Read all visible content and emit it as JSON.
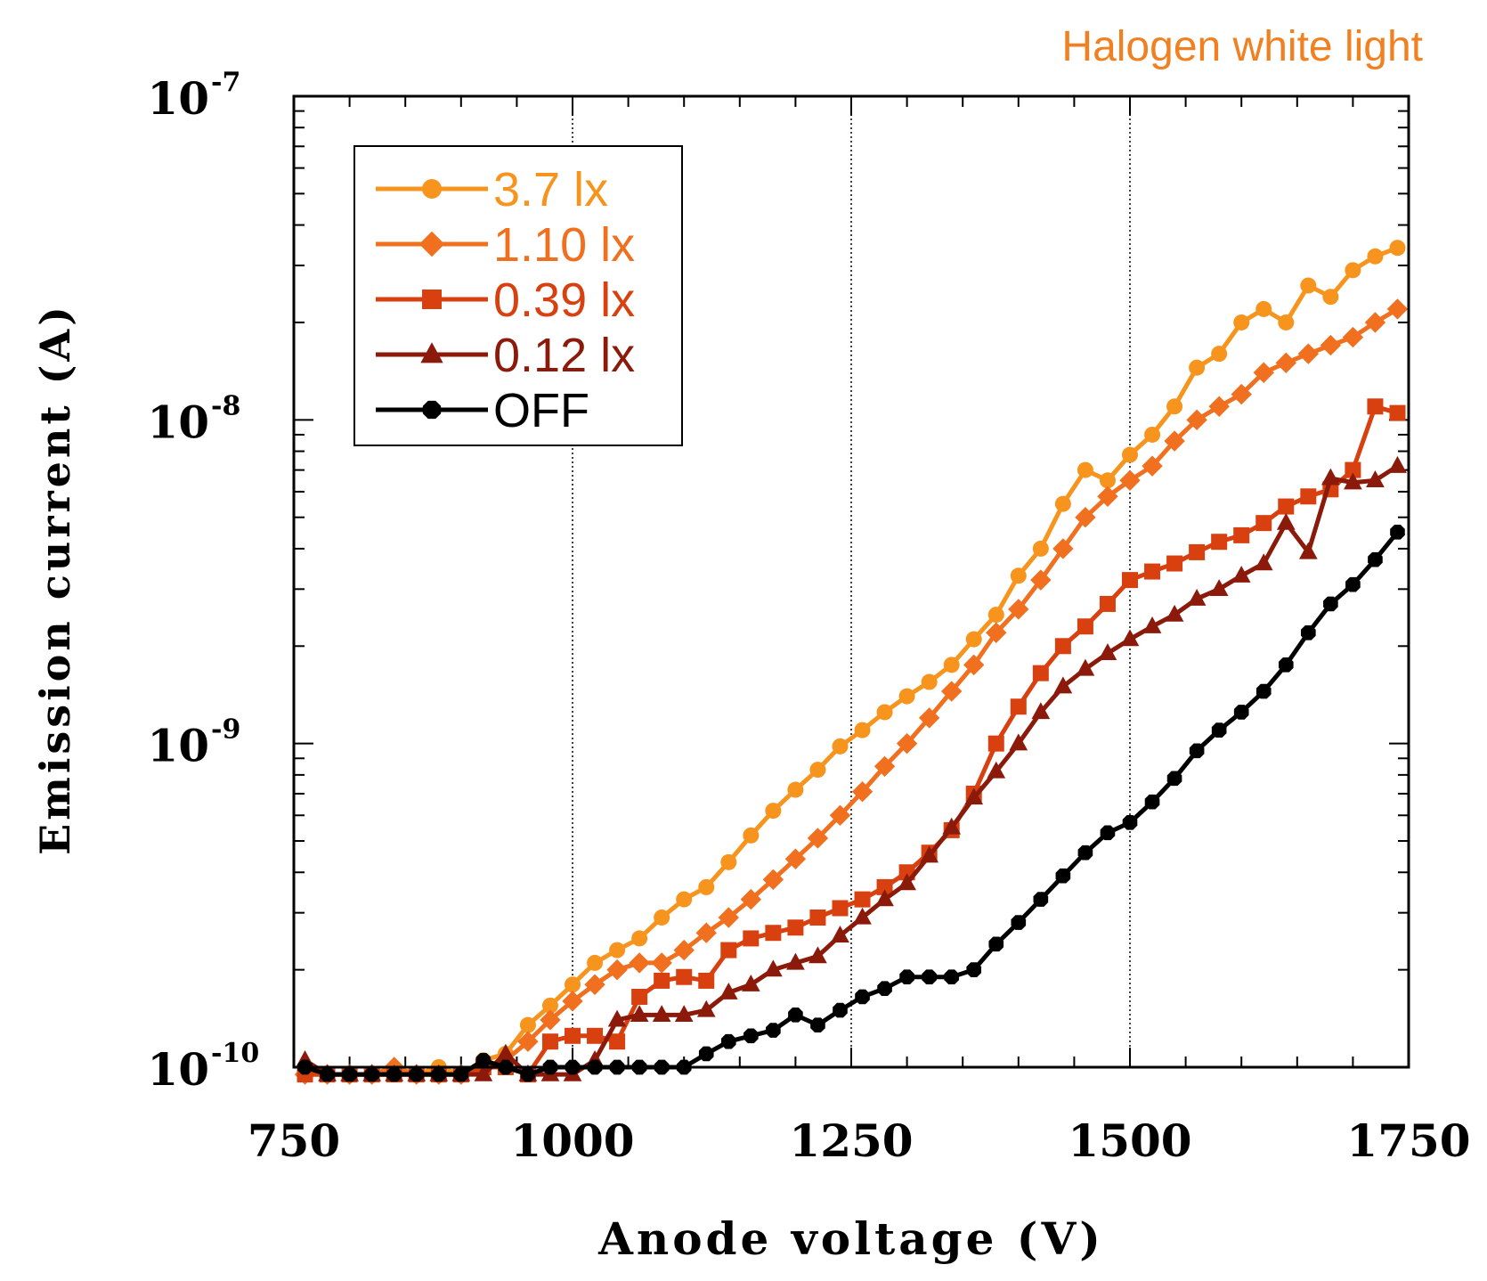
{
  "chart_data": {
    "type": "line",
    "title": "Halogen white light",
    "title_color": "#F08020",
    "xlabel": "Anode voltage (V)",
    "ylabel": "Emission current (A)",
    "xscale": "linear",
    "yscale": "log",
    "xlim": [
      750,
      1750
    ],
    "ylim": [
      1e-10,
      1e-07
    ],
    "x_ticks": [
      750,
      1000,
      1250,
      1500,
      1750
    ],
    "x_tick_labels": [
      "750",
      "1000",
      "1250",
      "1500",
      "1750"
    ],
    "y_ticks": [
      1e-10,
      1e-09,
      1e-08,
      1e-07
    ],
    "y_tick_labels": [
      {
        "base": "10",
        "exp": "-10"
      },
      {
        "base": "10",
        "exp": "-9"
      },
      {
        "base": "10",
        "exp": "-8"
      },
      {
        "base": "10",
        "exp": "-7"
      }
    ],
    "vertical_gridlines": [
      1000,
      1250,
      1500
    ],
    "legend_position": "top-left",
    "series": [
      {
        "name": "3.7  lx",
        "color": "#F7941D",
        "marker": "circle",
        "x": [
          760,
          780,
          800,
          820,
          840,
          860,
          880,
          900,
          920,
          940,
          960,
          980,
          1000,
          1020,
          1040,
          1060,
          1080,
          1100,
          1120,
          1140,
          1160,
          1180,
          1200,
          1220,
          1240,
          1260,
          1280,
          1300,
          1320,
          1340,
          1360,
          1380,
          1400,
          1420,
          1440,
          1460,
          1480,
          1500,
          1520,
          1540,
          1560,
          1580,
          1600,
          1620,
          1640,
          1660,
          1680,
          1700,
          1720,
          1740
        ],
        "y": [
          9.5e-11,
          9.5e-11,
          9.5e-11,
          9.5e-11,
          9.5e-11,
          9.5e-11,
          1e-10,
          9.5e-11,
          1.05e-10,
          1.1e-10,
          1.35e-10,
          1.55e-10,
          1.8e-10,
          2.1e-10,
          2.3e-10,
          2.5e-10,
          2.9e-10,
          3.3e-10,
          3.6e-10,
          4.3e-10,
          5.2e-10,
          6.2e-10,
          7.2e-10,
          8.3e-10,
          9.8e-10,
          1.1e-09,
          1.25e-09,
          1.4e-09,
          1.55e-09,
          1.75e-09,
          2.1e-09,
          2.5e-09,
          3.3e-09,
          4e-09,
          5.5e-09,
          7e-09,
          6.5e-09,
          7.8e-09,
          9e-09,
          1.1e-08,
          1.45e-08,
          1.6e-08,
          2e-08,
          2.2e-08,
          2e-08,
          2.6e-08,
          2.4e-08,
          2.9e-08,
          3.2e-08,
          3.4e-08
        ]
      },
      {
        "name": "1.10 lx",
        "color": "#F07020",
        "marker": "diamond",
        "x": [
          760,
          780,
          800,
          820,
          840,
          860,
          880,
          900,
          920,
          940,
          960,
          980,
          1000,
          1020,
          1040,
          1060,
          1080,
          1100,
          1120,
          1140,
          1160,
          1180,
          1200,
          1220,
          1240,
          1260,
          1280,
          1300,
          1320,
          1340,
          1360,
          1380,
          1400,
          1420,
          1440,
          1460,
          1480,
          1500,
          1520,
          1540,
          1560,
          1580,
          1600,
          1620,
          1640,
          1660,
          1680,
          1700,
          1720,
          1740
        ],
        "y": [
          9.5e-11,
          9.5e-11,
          9.5e-11,
          9.5e-11,
          1e-10,
          9.5e-11,
          9.5e-11,
          9.5e-11,
          1e-10,
          1.05e-10,
          1.2e-10,
          1.4e-10,
          1.6e-10,
          1.8e-10,
          2e-10,
          2.1e-10,
          2.1e-10,
          2.3e-10,
          2.6e-10,
          2.9e-10,
          3.3e-10,
          3.8e-10,
          4.4e-10,
          5.1e-10,
          6e-10,
          7.1e-10,
          8.5e-10,
          1e-09,
          1.2e-09,
          1.45e-09,
          1.75e-09,
          2.2e-09,
          2.6e-09,
          3.2e-09,
          4e-09,
          5e-09,
          5.8e-09,
          6.5e-09,
          7.2e-09,
          8.6e-09,
          1e-08,
          1.1e-08,
          1.2e-08,
          1.4e-08,
          1.5e-08,
          1.6e-08,
          1.7e-08,
          1.8e-08,
          2e-08,
          2.2e-08
        ]
      },
      {
        "name": "0.39 lx",
        "color": "#D94010",
        "marker": "square",
        "x": [
          760,
          780,
          800,
          820,
          840,
          860,
          880,
          900,
          920,
          940,
          960,
          980,
          1000,
          1020,
          1040,
          1060,
          1080,
          1100,
          1120,
          1140,
          1160,
          1180,
          1200,
          1220,
          1240,
          1260,
          1280,
          1300,
          1320,
          1340,
          1360,
          1380,
          1400,
          1420,
          1440,
          1460,
          1480,
          1500,
          1520,
          1540,
          1560,
          1580,
          1600,
          1620,
          1640,
          1660,
          1680,
          1700,
          1720,
          1740
        ],
        "y": [
          9.5e-11,
          9.5e-11,
          9.5e-11,
          9.5e-11,
          9.5e-11,
          9.5e-11,
          9.5e-11,
          9.5e-11,
          1e-10,
          1e-10,
          9.5e-11,
          1.2e-10,
          1.25e-10,
          1.25e-10,
          1.2e-10,
          1.65e-10,
          1.85e-10,
          1.9e-10,
          1.85e-10,
          2.3e-10,
          2.5e-10,
          2.6e-10,
          2.7e-10,
          2.9e-10,
          3.1e-10,
          3.3e-10,
          3.6e-10,
          4e-10,
          4.6e-10,
          5.4e-10,
          7e-10,
          1e-09,
          1.3e-09,
          1.65e-09,
          2e-09,
          2.3e-09,
          2.7e-09,
          3.2e-09,
          3.4e-09,
          3.6e-09,
          3.9e-09,
          4.2e-09,
          4.4e-09,
          4.8e-09,
          5.4e-09,
          5.8e-09,
          6.1e-09,
          7e-09,
          1.1e-08,
          1.05e-08
        ]
      },
      {
        "name": "0.12 lx",
        "color": "#8B1A0A",
        "marker": "triangle",
        "x": [
          760,
          780,
          800,
          820,
          840,
          860,
          880,
          900,
          920,
          940,
          960,
          980,
          1000,
          1020,
          1040,
          1060,
          1080,
          1100,
          1120,
          1140,
          1160,
          1180,
          1200,
          1220,
          1240,
          1260,
          1280,
          1300,
          1320,
          1340,
          1360,
          1380,
          1400,
          1420,
          1440,
          1460,
          1480,
          1500,
          1520,
          1540,
          1560,
          1580,
          1600,
          1620,
          1640,
          1660,
          1680,
          1700,
          1720,
          1740
        ],
        "y": [
          1.05e-10,
          9.5e-11,
          9.5e-11,
          9.5e-11,
          9.5e-11,
          9.5e-11,
          9.5e-11,
          9.5e-11,
          9.5e-11,
          1.1e-10,
          9.5e-11,
          9.5e-11,
          9.5e-11,
          1.05e-10,
          1.4e-10,
          1.45e-10,
          1.45e-10,
          1.45e-10,
          1.5e-10,
          1.7e-10,
          1.8e-10,
          2e-10,
          2.1e-10,
          2.2e-10,
          2.55e-10,
          2.9e-10,
          3.3e-10,
          3.7e-10,
          4.5e-10,
          5.5e-10,
          6.8e-10,
          8.2e-10,
          1e-09,
          1.25e-09,
          1.5e-09,
          1.7e-09,
          1.9e-09,
          2.1e-09,
          2.3e-09,
          2.5e-09,
          2.8e-09,
          3e-09,
          3.3e-09,
          3.6e-09,
          4.8e-09,
          3.9e-09,
          6.6e-09,
          6.4e-09,
          6.5e-09,
          7.2e-09
        ]
      },
      {
        "name": "OFF",
        "color": "#000000",
        "marker": "octagon",
        "x": [
          760,
          780,
          800,
          820,
          840,
          860,
          880,
          900,
          920,
          940,
          960,
          980,
          1000,
          1020,
          1040,
          1060,
          1080,
          1100,
          1120,
          1140,
          1160,
          1180,
          1200,
          1220,
          1240,
          1260,
          1280,
          1300,
          1320,
          1340,
          1360,
          1380,
          1400,
          1420,
          1440,
          1460,
          1480,
          1500,
          1520,
          1540,
          1560,
          1580,
          1600,
          1620,
          1640,
          1660,
          1680,
          1700,
          1720,
          1740
        ],
        "y": [
          1e-10,
          9.5e-11,
          9.5e-11,
          9.5e-11,
          9.5e-11,
          9.5e-11,
          9.5e-11,
          9.5e-11,
          1.05e-10,
          1e-10,
          9.5e-11,
          1e-10,
          1e-10,
          1e-10,
          1e-10,
          1e-10,
          1e-10,
          1e-10,
          1.1e-10,
          1.2e-10,
          1.25e-10,
          1.3e-10,
          1.45e-10,
          1.35e-10,
          1.5e-10,
          1.65e-10,
          1.75e-10,
          1.9e-10,
          1.9e-10,
          1.9e-10,
          2e-10,
          2.4e-10,
          2.8e-10,
          3.3e-10,
          3.9e-10,
          4.6e-10,
          5.3e-10,
          5.7e-10,
          6.6e-10,
          7.8e-10,
          9.5e-10,
          1.1e-09,
          1.25e-09,
          1.45e-09,
          1.75e-09,
          2.2e-09,
          2.7e-09,
          3.1e-09,
          3.7e-09,
          4.5e-09
        ]
      }
    ]
  }
}
